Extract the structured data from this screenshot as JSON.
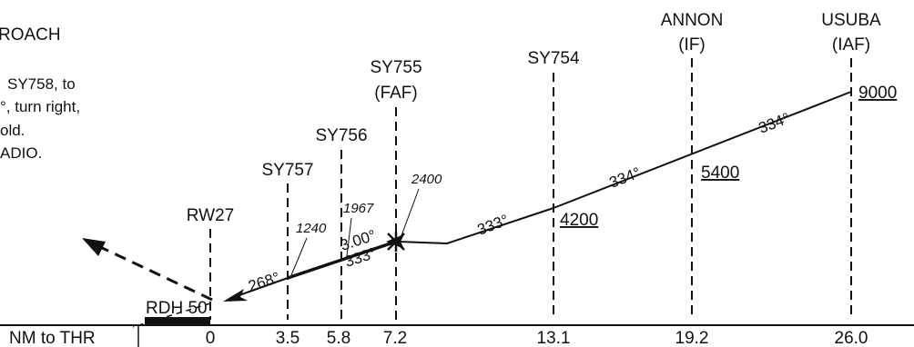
{
  "title": "ROACH",
  "notes": [
    "SY758, to",
    "°, turn right,",
    "old.",
    "ADIO."
  ],
  "fixes": {
    "usuba": {
      "name": "USUBA",
      "role": "(IAF)",
      "altitude": "9000",
      "distance": "26.0"
    },
    "annon": {
      "name": "ANNON",
      "role": "(IF)",
      "altitude": "5400",
      "distance": "19.2"
    },
    "sy754": {
      "name": "SY754",
      "altitude": "4200",
      "distance": "13.1"
    },
    "sy755": {
      "name": "SY755",
      "role": "(FAF)",
      "altitude": "2400",
      "distance": "7.2"
    },
    "sy756": {
      "name": "SY756",
      "altitude": "1967",
      "distance": "5.8"
    },
    "sy757": {
      "name": "SY757",
      "altitude": "1240",
      "distance": "3.5"
    },
    "rw27": {
      "name": "RW27",
      "distance": "0"
    }
  },
  "courses": {
    "usuba_annon": "334°",
    "annon_sy754": "334°",
    "sy754_sy755": "333°",
    "final_glide": "333°",
    "glide_angle": "3.00°",
    "missed": "268°"
  },
  "rdh": "RDH 50",
  "axis_label": "NM to THR"
}
